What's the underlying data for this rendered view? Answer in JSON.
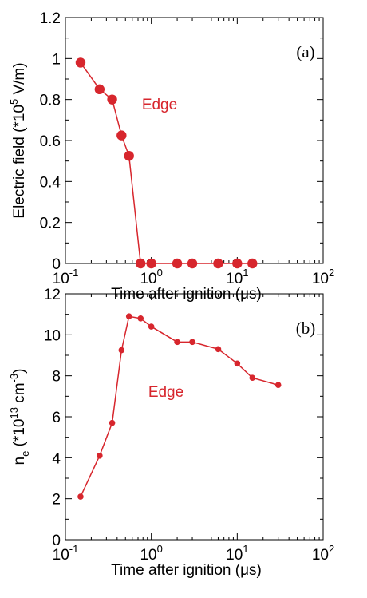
{
  "chart_data": [
    {
      "type": "scatter",
      "panel_label": "(a)",
      "xlabel": "Time after ignition (μs)",
      "ylabel_main": "Electric field (*10",
      "ylabel_sup": "5",
      "ylabel_tail": " V/m)",
      "xscale": "log",
      "xlim": [
        0.1,
        100
      ],
      "ylim": [
        0,
        1.2
      ],
      "x_ticks": [
        0.1,
        1,
        10,
        100
      ],
      "x_tick_labels": [
        {
          "base": "10",
          "exp": "-1"
        },
        {
          "base": "10",
          "exp": "0"
        },
        {
          "base": "10",
          "exp": "1"
        },
        {
          "base": "10",
          "exp": "2"
        }
      ],
      "y_ticks": [
        0,
        0.2,
        0.4,
        0.6,
        0.8,
        1,
        1.2
      ],
      "y_tick_labels": [
        "0",
        "0.2",
        "0.4",
        "0.6",
        "0.8",
        "1",
        "1.2"
      ],
      "grid": false,
      "color": "#d7262d",
      "series": [
        {
          "name": "Edge",
          "x": [
            0.15,
            0.25,
            0.35,
            0.45,
            0.55,
            0.75,
            1.0,
            2.0,
            3.0,
            6.0,
            10.0,
            15.0
          ],
          "y": [
            0.98,
            0.85,
            0.8,
            0.625,
            0.525,
            0,
            0,
            0,
            0,
            0,
            0,
            0
          ]
        }
      ]
    },
    {
      "type": "scatter",
      "panel_label": "(b)",
      "xlabel": "Time after ignition (μs)",
      "ylabel_main": "n",
      "ylabel_sub": "e",
      "ylabel_mid": " (*10",
      "ylabel_sup": "13",
      "ylabel_mid2": " cm",
      "ylabel_sup2": "-3",
      "ylabel_tail": ")",
      "xscale": "log",
      "xlim": [
        0.1,
        100
      ],
      "ylim": [
        0,
        12
      ],
      "x_ticks": [
        0.1,
        1,
        10,
        100
      ],
      "x_tick_labels": [
        {
          "base": "10",
          "exp": "-1"
        },
        {
          "base": "10",
          "exp": "0"
        },
        {
          "base": "10",
          "exp": "1"
        },
        {
          "base": "10",
          "exp": "2"
        }
      ],
      "y_ticks": [
        0,
        2,
        4,
        6,
        8,
        10,
        12
      ],
      "y_tick_labels": [
        "0",
        "2",
        "4",
        "6",
        "8",
        "10",
        "12"
      ],
      "grid": false,
      "color": "#d7262d",
      "series": [
        {
          "name": "Edge",
          "x": [
            0.15,
            0.25,
            0.35,
            0.45,
            0.55,
            0.75,
            1.0,
            2.0,
            3.0,
            6.0,
            10.0,
            15.0,
            30.0
          ],
          "y": [
            2.1,
            4.1,
            5.7,
            9.25,
            10.9,
            10.8,
            10.4,
            9.65,
            9.65,
            9.3,
            8.6,
            7.9,
            7.55
          ]
        }
      ]
    }
  ]
}
